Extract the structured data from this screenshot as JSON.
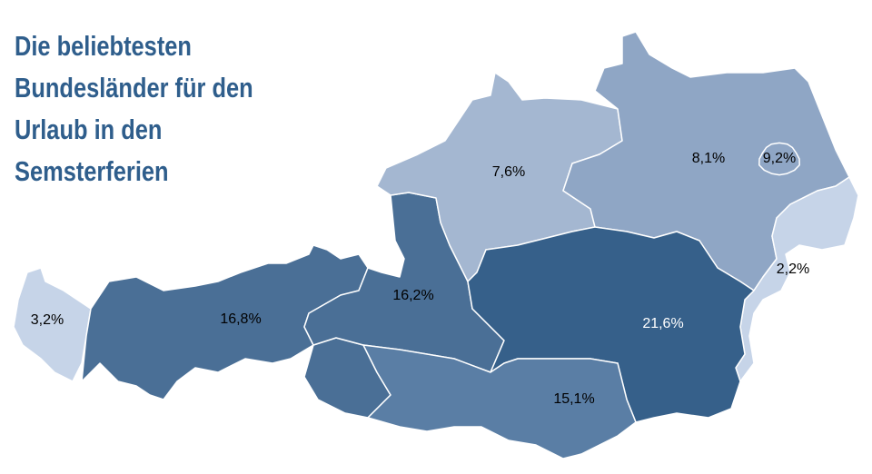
{
  "chart_data": {
    "type": "choropleth",
    "title": [
      "Die beliebtesten",
      "Bundesländer für den",
      "Urlaub in den",
      "Semsterferien"
    ],
    "values": [
      3.2,
      16.8,
      16.2,
      7.6,
      8.1,
      9.2,
      2.2,
      21.6,
      15.1
    ],
    "value_labels": [
      "3,2%",
      "16,8%",
      "16,2%",
      "7,6%",
      "8,1%",
      "9,2%",
      "2,2%",
      "21,6%",
      "15,1%"
    ],
    "colors": [
      "#c6d4e8",
      "#4a6f96",
      "#4a6f96",
      "#a4b7d1",
      "#8fa6c5",
      "#8fa6c5",
      "#c6d4e8",
      "#36608a",
      "#5a7ea5"
    ]
  }
}
